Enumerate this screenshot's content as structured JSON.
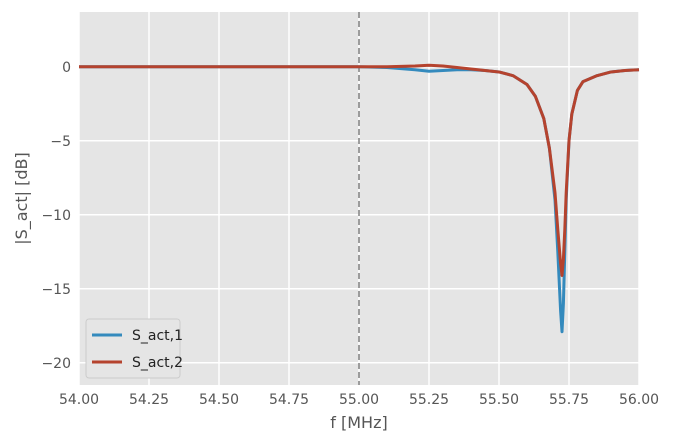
{
  "chart_data": {
    "type": "line",
    "xlabel": "f [MHz]",
    "ylabel": "|S_act| [dB]",
    "xlim": [
      54.0,
      56.0
    ],
    "ylim": [
      -21.5,
      3.7
    ],
    "grid": true,
    "background_color": "#e5e5e5",
    "grid_color": "#ffffff",
    "x_ticks": [
      "54.00",
      "54.25",
      "54.50",
      "54.75",
      "55.00",
      "55.25",
      "55.50",
      "55.75",
      "56.00"
    ],
    "x_tick_values": [
      54.0,
      54.25,
      54.5,
      54.75,
      55.0,
      55.25,
      55.5,
      55.75,
      56.0
    ],
    "y_ticks": [
      "−20",
      "−15",
      "−10",
      "−5",
      "0"
    ],
    "y_tick_values": [
      -20,
      -15,
      -10,
      -5,
      0
    ],
    "vline": {
      "x": 55.0,
      "style": "dashed",
      "color": "#808080"
    },
    "legend_position": "lower-left",
    "series": [
      {
        "name": "S_act,1",
        "color": "#348abd",
        "x": [
          54.0,
          54.5,
          55.0,
          55.1,
          55.2,
          55.25,
          55.3,
          55.35,
          55.4,
          55.45,
          55.5,
          55.55,
          55.6,
          55.63,
          55.66,
          55.68,
          55.7,
          55.71,
          55.72,
          55.725,
          55.73,
          55.735,
          55.74,
          55.75,
          55.76,
          55.78,
          55.8,
          55.85,
          55.9,
          55.95,
          56.0
        ],
        "y": [
          0.0,
          0.0,
          0.0,
          -0.05,
          -0.2,
          -0.3,
          -0.25,
          -0.2,
          -0.2,
          -0.25,
          -0.35,
          -0.6,
          -1.2,
          -2.0,
          -3.5,
          -5.5,
          -9.0,
          -12.5,
          -16.5,
          -17.9,
          -16.0,
          -12.5,
          -9.0,
          -5.0,
          -3.2,
          -1.6,
          -1.0,
          -0.6,
          -0.35,
          -0.25,
          -0.2
        ]
      },
      {
        "name": "S_act,2",
        "color": "#b5432e",
        "x": [
          54.0,
          54.5,
          55.0,
          55.1,
          55.2,
          55.25,
          55.3,
          55.35,
          55.4,
          55.45,
          55.5,
          55.55,
          55.6,
          55.63,
          55.66,
          55.68,
          55.7,
          55.71,
          55.72,
          55.725,
          55.73,
          55.735,
          55.74,
          55.75,
          55.76,
          55.78,
          55.8,
          55.85,
          55.9,
          55.95,
          56.0
        ],
        "y": [
          0.0,
          0.0,
          0.0,
          0.0,
          0.05,
          0.1,
          0.05,
          -0.05,
          -0.15,
          -0.25,
          -0.35,
          -0.6,
          -1.2,
          -2.0,
          -3.5,
          -5.5,
          -8.5,
          -11.0,
          -13.3,
          -14.1,
          -13.0,
          -11.0,
          -8.5,
          -5.0,
          -3.2,
          -1.6,
          -1.0,
          -0.6,
          -0.35,
          -0.25,
          -0.2
        ]
      }
    ]
  }
}
